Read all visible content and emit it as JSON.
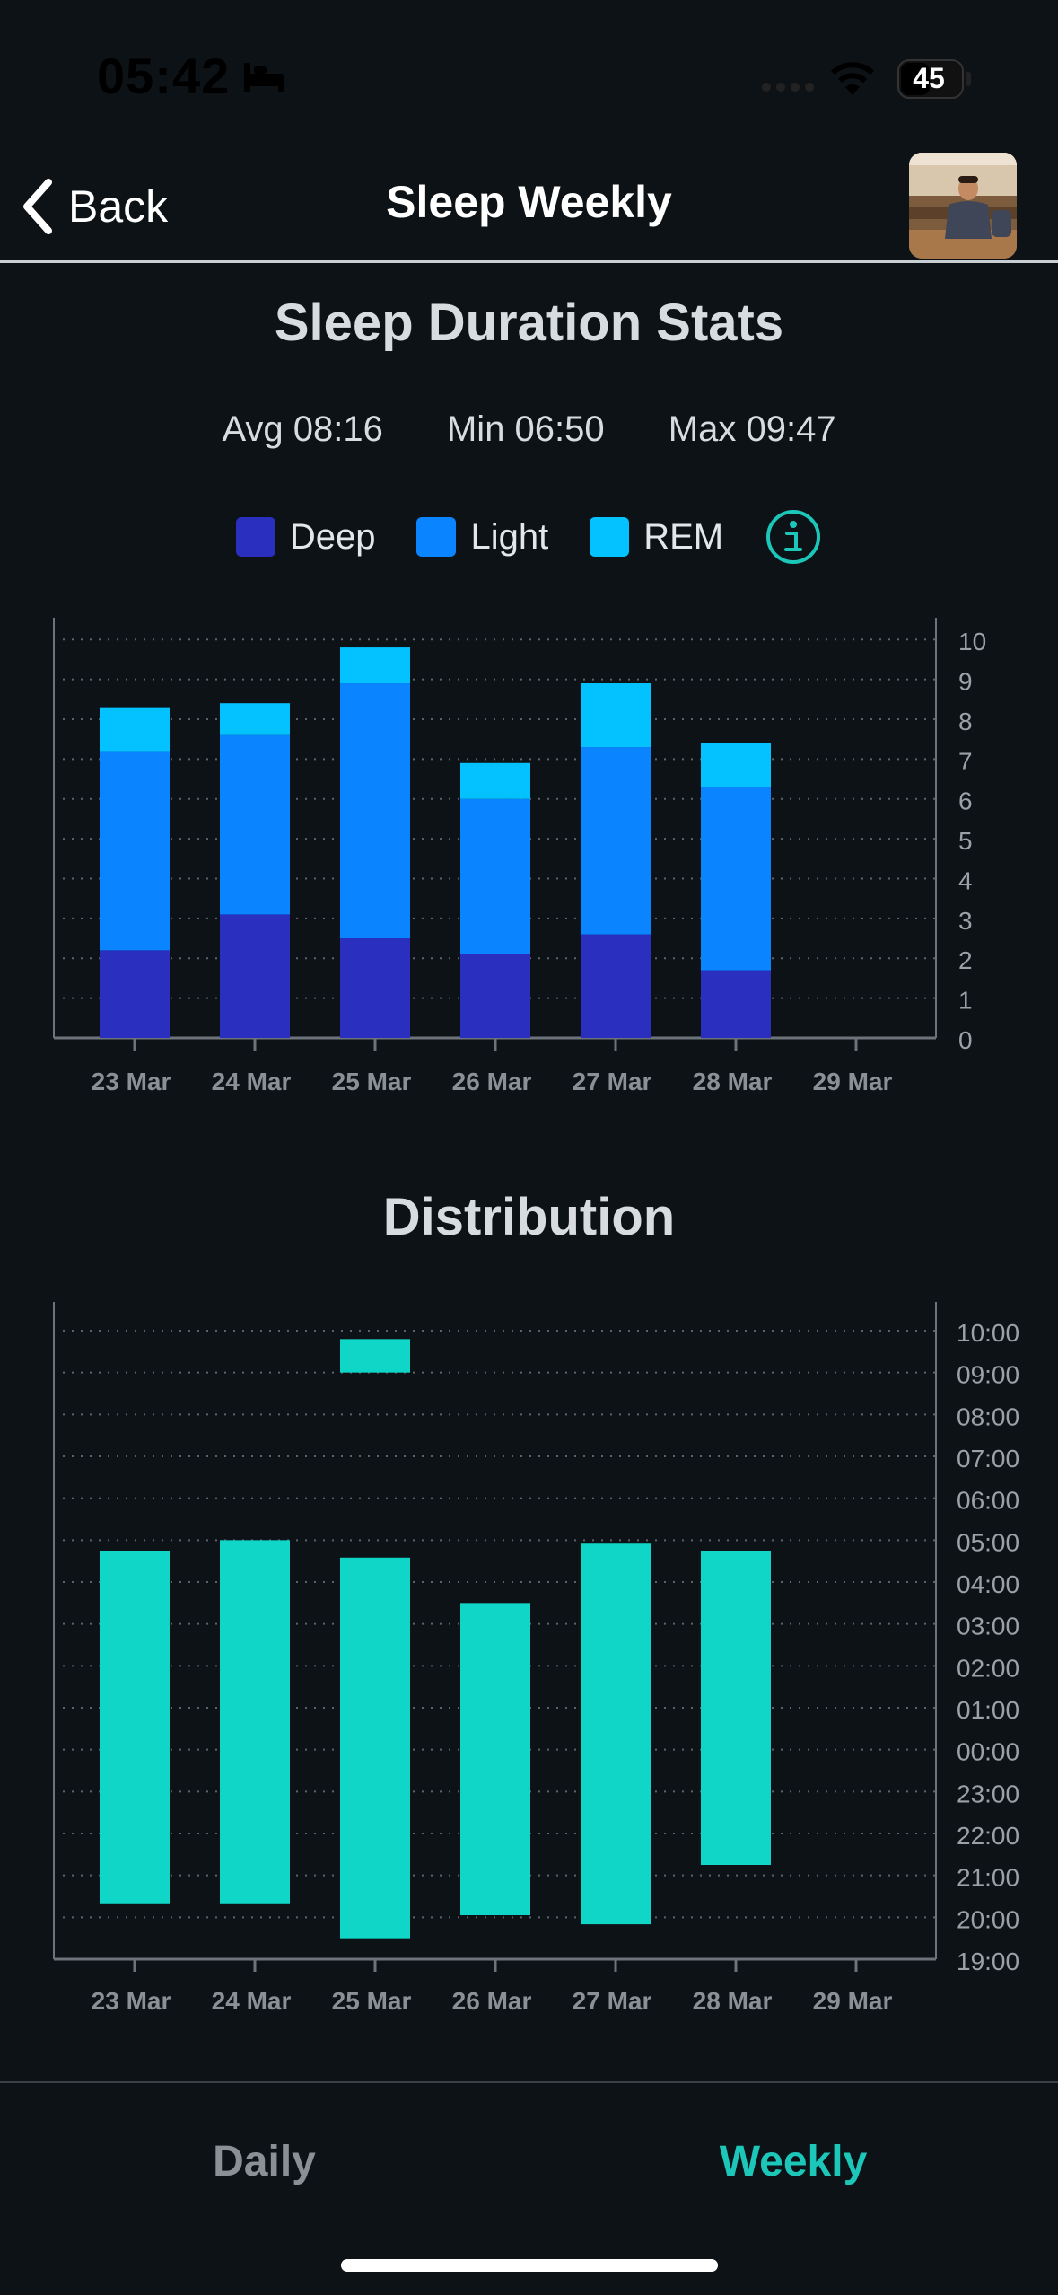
{
  "status_bar": {
    "time": "05:42",
    "battery": "45"
  },
  "nav": {
    "back_label": "Back",
    "title": "Sleep Weekly"
  },
  "stats": {
    "title": "Sleep Duration Stats",
    "avg": "Avg 08:16",
    "min": "Min 06:50",
    "max": "Max 09:47"
  },
  "legend": [
    {
      "label": "Deep",
      "color": "#2a2fc0"
    },
    {
      "label": "Light",
      "color": "#0a84ff"
    },
    {
      "label": "REM",
      "color": "#04c2ff"
    }
  ],
  "distribution_title": "Distribution",
  "tabs": {
    "daily": "Daily",
    "weekly": "Weekly"
  },
  "chart_data": [
    {
      "type": "bar",
      "stacked": true,
      "title": "",
      "categories": [
        "23 Mar",
        "24 Mar",
        "25 Mar",
        "26 Mar",
        "27 Mar",
        "28 Mar",
        "29 Mar"
      ],
      "series": [
        {
          "name": "Deep",
          "color": "#2a2fc0",
          "values": [
            2.2,
            3.1,
            2.5,
            2.1,
            2.6,
            1.7,
            0
          ]
        },
        {
          "name": "Light",
          "color": "#0a84ff",
          "values": [
            5.0,
            4.5,
            6.4,
            3.9,
            4.7,
            4.6,
            0
          ]
        },
        {
          "name": "REM",
          "color": "#04c2ff",
          "values": [
            1.1,
            0.8,
            0.9,
            0.9,
            1.6,
            1.1,
            0
          ]
        }
      ],
      "yticks": [
        "0",
        "1",
        "2",
        "3",
        "4",
        "5",
        "6",
        "7",
        "8",
        "9",
        "10"
      ],
      "ylim": [
        0,
        10.5
      ],
      "y_axis_side": "right",
      "grid": true
    },
    {
      "type": "bar",
      "range": true,
      "title": "",
      "categories": [
        "23 Mar",
        "24 Mar",
        "25 Mar",
        "26 Mar",
        "27 Mar",
        "28 Mar",
        "29 Mar"
      ],
      "color": "#0fd6c6",
      "yticks": [
        "19:00",
        "20:00",
        "21:00",
        "22:00",
        "23:00",
        "00:00",
        "01:00",
        "02:00",
        "03:00",
        "04:00",
        "05:00",
        "06:00",
        "07:00",
        "08:00",
        "09:00",
        "10:00"
      ],
      "ylim_hours_since_19": [
        0,
        15
      ],
      "segments": [
        {
          "category": "23 Mar",
          "start": "20:20",
          "end": "04:45"
        },
        {
          "category": "24 Mar",
          "start": "20:20",
          "end": "05:00"
        },
        {
          "category": "25 Mar",
          "start": "19:30",
          "end": "04:35"
        },
        {
          "category": "25 Mar",
          "start": "09:00",
          "end": "09:48"
        },
        {
          "category": "26 Mar",
          "start": "20:03",
          "end": "03:30"
        },
        {
          "category": "27 Mar",
          "start": "19:50",
          "end": "04:55"
        },
        {
          "category": "28 Mar",
          "start": "21:15",
          "end": "04:45"
        }
      ],
      "y_axis_side": "right",
      "grid": true
    }
  ]
}
